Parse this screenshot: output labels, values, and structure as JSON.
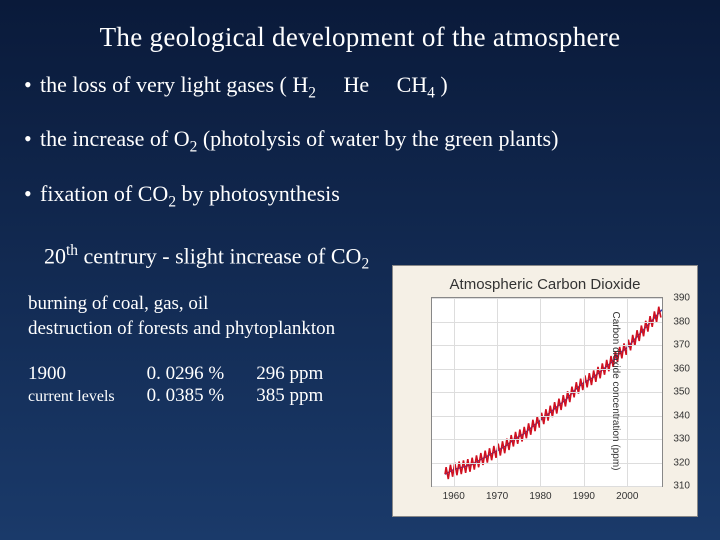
{
  "title": "The  geological development of the atmosphere",
  "bullets": {
    "b1_pre": "the loss of very light gases ( H",
    "b1_he": "He",
    "b1_ch4": "CH",
    "b1_close": " )",
    "b2_pre": "the increase of  O",
    "b2_post": "    (photolysis of water by the green plants)",
    "b3_pre": "fixation of CO",
    "b3_post": " by photosynthesis"
  },
  "sub": {
    "century_pre": "20",
    "century_post": " centrury - slight increase of  CO"
  },
  "body": {
    "line1": "burning of coal, gas, oil",
    "line2": "destruction of forests and phytoplankton"
  },
  "data": {
    "r1c1": "1900",
    "r1c2": "0. 0296 %",
    "r1c3": "296 ppm",
    "r2c1": "current levels",
    "r2c2": "0. 0385 %",
    "r2c3": "385 ppm"
  },
  "chart": {
    "title": "Atmospheric Carbon Dioxide",
    "ylabel": "Carbon dioxide concentration (ppm)",
    "xlim": [
      1955,
      2008
    ],
    "ylim": [
      310,
      390
    ],
    "xticks": [
      1960,
      1970,
      1980,
      1990,
      2000
    ],
    "yticks": [
      310,
      320,
      330,
      340,
      350,
      360,
      370,
      380,
      390
    ],
    "bg_color": "#f5f0e6",
    "plot_bg": "#ffffff",
    "grid_color": "#dddddd",
    "line_color": "#d01020",
    "trend_colors": [
      "#2040c0",
      "#2040c0"
    ],
    "line_width": 1.6,
    "series": [
      {
        "x": 1958,
        "y": 315
      },
      {
        "x": 1960,
        "y": 317
      },
      {
        "x": 1962,
        "y": 318
      },
      {
        "x": 1964,
        "y": 319
      },
      {
        "x": 1966,
        "y": 321
      },
      {
        "x": 1968,
        "y": 323
      },
      {
        "x": 1970,
        "y": 325
      },
      {
        "x": 1972,
        "y": 327
      },
      {
        "x": 1974,
        "y": 330
      },
      {
        "x": 1976,
        "y": 332
      },
      {
        "x": 1978,
        "y": 335
      },
      {
        "x": 1980,
        "y": 338
      },
      {
        "x": 1982,
        "y": 341
      },
      {
        "x": 1984,
        "y": 344
      },
      {
        "x": 1986,
        "y": 347
      },
      {
        "x": 1988,
        "y": 351
      },
      {
        "x": 1990,
        "y": 354
      },
      {
        "x": 1992,
        "y": 356
      },
      {
        "x": 1994,
        "y": 359
      },
      {
        "x": 1996,
        "y": 362
      },
      {
        "x": 1998,
        "y": 366
      },
      {
        "x": 2000,
        "y": 369
      },
      {
        "x": 2002,
        "y": 373
      },
      {
        "x": 2004,
        "y": 377
      },
      {
        "x": 2006,
        "y": 381
      },
      {
        "x": 2008,
        "y": 385
      }
    ],
    "oscillation_amp_ppm": 2.8,
    "oscillation_per_year": 2
  }
}
